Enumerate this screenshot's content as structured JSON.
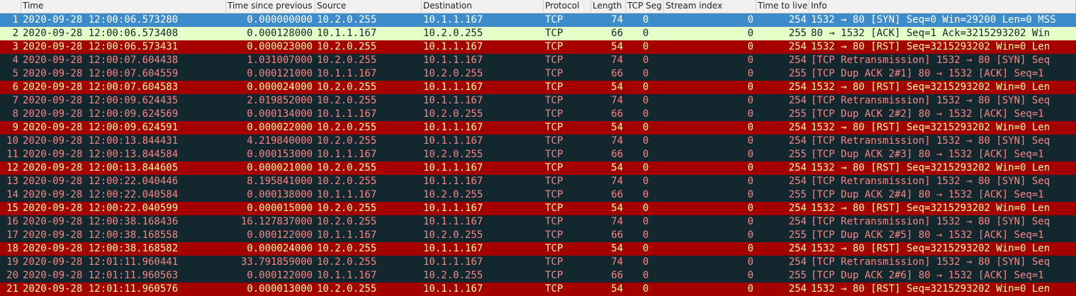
{
  "columns": [
    "",
    "Time",
    "Time since previous",
    "Source",
    "Destination",
    "Protocol",
    "Length",
    "TCP Seg",
    "Stream index",
    "Time to live",
    "Info"
  ],
  "packets": [
    {
      "no": "1",
      "time": "2020-09-28 12:00:06.573280",
      "delta": "0.000000000",
      "src": "10.2.0.255",
      "dst": "10.1.1.167",
      "proto": "TCP",
      "len": "74",
      "seg": "0",
      "stream": "0",
      "ttl": "254",
      "info": "1532 → 80 [SYN] Seq=0 Win=29200 Len=0 MSS",
      "style": "sel"
    },
    {
      "no": "2",
      "time": "2020-09-28 12:00:06.573408",
      "delta": "0.000128000",
      "src": "10.1.1.167",
      "dst": "10.2.0.255",
      "proto": "TCP",
      "len": "66",
      "seg": "0",
      "stream": "0",
      "ttl": "255",
      "info": "80 → 1532 [ACK] Seq=1 Ack=3215293202 Win",
      "style": "ack"
    },
    {
      "no": "3",
      "time": "2020-09-28 12:00:06.573431",
      "delta": "0.000023000",
      "src": "10.2.0.255",
      "dst": "10.1.1.167",
      "proto": "TCP",
      "len": "54",
      "seg": "0",
      "stream": "0",
      "ttl": "254",
      "info": "1532 → 80 [RST] Seq=3215293202 Win=0 Len",
      "style": "rst"
    },
    {
      "no": "4",
      "time": "2020-09-28 12:00:07.604438",
      "delta": "1.031007000",
      "src": "10.2.0.255",
      "dst": "10.1.1.167",
      "proto": "TCP",
      "len": "74",
      "seg": "0",
      "stream": "0",
      "ttl": "254",
      "info": "[TCP Retransmission] 1532 → 80 [SYN] Seq",
      "style": "default"
    },
    {
      "no": "5",
      "time": "2020-09-28 12:00:07.604559",
      "delta": "0.000121000",
      "src": "10.1.1.167",
      "dst": "10.2.0.255",
      "proto": "TCP",
      "len": "66",
      "seg": "0",
      "stream": "0",
      "ttl": "255",
      "info": "[TCP Dup ACK 2#1] 80 → 1532 [ACK] Seq=1",
      "style": "default"
    },
    {
      "no": "6",
      "time": "2020-09-28 12:00:07.604583",
      "delta": "0.000024000",
      "src": "10.2.0.255",
      "dst": "10.1.1.167",
      "proto": "TCP",
      "len": "54",
      "seg": "0",
      "stream": "0",
      "ttl": "254",
      "info": "1532 → 80 [RST] Seq=3215293202 Win=0 Len",
      "style": "rst"
    },
    {
      "no": "7",
      "time": "2020-09-28 12:00:09.624435",
      "delta": "2.019852000",
      "src": "10.2.0.255",
      "dst": "10.1.1.167",
      "proto": "TCP",
      "len": "74",
      "seg": "0",
      "stream": "0",
      "ttl": "254",
      "info": "[TCP Retransmission] 1532 → 80 [SYN] Seq",
      "style": "default"
    },
    {
      "no": "8",
      "time": "2020-09-28 12:00:09.624569",
      "delta": "0.000134000",
      "src": "10.1.1.167",
      "dst": "10.2.0.255",
      "proto": "TCP",
      "len": "66",
      "seg": "0",
      "stream": "0",
      "ttl": "255",
      "info": "[TCP Dup ACK 2#2] 80 → 1532 [ACK] Seq=1",
      "style": "default"
    },
    {
      "no": "9",
      "time": "2020-09-28 12:00:09.624591",
      "delta": "0.000022000",
      "src": "10.2.0.255",
      "dst": "10.1.1.167",
      "proto": "TCP",
      "len": "54",
      "seg": "0",
      "stream": "0",
      "ttl": "254",
      "info": "1532 → 80 [RST] Seq=3215293202 Win=0 Len",
      "style": "rst"
    },
    {
      "no": "10",
      "time": "2020-09-28 12:00:13.844431",
      "delta": "4.219840000",
      "src": "10.2.0.255",
      "dst": "10.1.1.167",
      "proto": "TCP",
      "len": "74",
      "seg": "0",
      "stream": "0",
      "ttl": "254",
      "info": "[TCP Retransmission] 1532 → 80 [SYN] Seq",
      "style": "default"
    },
    {
      "no": "11",
      "time": "2020-09-28 12:00:13.844584",
      "delta": "0.000153000",
      "src": "10.1.1.167",
      "dst": "10.2.0.255",
      "proto": "TCP",
      "len": "66",
      "seg": "0",
      "stream": "0",
      "ttl": "255",
      "info": "[TCP Dup ACK 2#3] 80 → 1532 [ACK] Seq=1",
      "style": "default"
    },
    {
      "no": "12",
      "time": "2020-09-28 12:00:13.844605",
      "delta": "0.000021000",
      "src": "10.2.0.255",
      "dst": "10.1.1.167",
      "proto": "TCP",
      "len": "54",
      "seg": "0",
      "stream": "0",
      "ttl": "254",
      "info": "1532 → 80 [RST] Seq=3215293202 Win=0 Len",
      "style": "rst"
    },
    {
      "no": "13",
      "time": "2020-09-28 12:00:22.040446",
      "delta": "8.195841000",
      "src": "10.2.0.255",
      "dst": "10.1.1.167",
      "proto": "TCP",
      "len": "74",
      "seg": "0",
      "stream": "0",
      "ttl": "254",
      "info": "[TCP Retransmission] 1532 → 80 [SYN] Seq",
      "style": "default"
    },
    {
      "no": "14",
      "time": "2020-09-28 12:00:22.040584",
      "delta": "0.000138000",
      "src": "10.1.1.167",
      "dst": "10.2.0.255",
      "proto": "TCP",
      "len": "66",
      "seg": "0",
      "stream": "0",
      "ttl": "255",
      "info": "[TCP Dup ACK 2#4] 80 → 1532 [ACK] Seq=1",
      "style": "default"
    },
    {
      "no": "15",
      "time": "2020-09-28 12:00:22.040599",
      "delta": "0.000015000",
      "src": "10.2.0.255",
      "dst": "10.1.1.167",
      "proto": "TCP",
      "len": "54",
      "seg": "0",
      "stream": "0",
      "ttl": "254",
      "info": "1532 → 80 [RST] Seq=3215293202 Win=0 Len",
      "style": "rst"
    },
    {
      "no": "16",
      "time": "2020-09-28 12:00:38.168436",
      "delta": "16.127837000",
      "src": "10.2.0.255",
      "dst": "10.1.1.167",
      "proto": "TCP",
      "len": "74",
      "seg": "0",
      "stream": "0",
      "ttl": "254",
      "info": "[TCP Retransmission] 1532 → 80 [SYN] Seq",
      "style": "default"
    },
    {
      "no": "17",
      "time": "2020-09-28 12:00:38.168558",
      "delta": "0.000122000",
      "src": "10.1.1.167",
      "dst": "10.2.0.255",
      "proto": "TCP",
      "len": "66",
      "seg": "0",
      "stream": "0",
      "ttl": "255",
      "info": "[TCP Dup ACK 2#5] 80 → 1532 [ACK] Seq=1",
      "style": "default"
    },
    {
      "no": "18",
      "time": "2020-09-28 12:00:38.168582",
      "delta": "0.000024000",
      "src": "10.2.0.255",
      "dst": "10.1.1.167",
      "proto": "TCP",
      "len": "54",
      "seg": "0",
      "stream": "0",
      "ttl": "254",
      "info": "1532 → 80 [RST] Seq=3215293202 Win=0 Len",
      "style": "rst"
    },
    {
      "no": "19",
      "time": "2020-09-28 12:01:11.960441",
      "delta": "33.791859000",
      "src": "10.2.0.255",
      "dst": "10.1.1.167",
      "proto": "TCP",
      "len": "74",
      "seg": "0",
      "stream": "0",
      "ttl": "254",
      "info": "[TCP Retransmission] 1532 → 80 [SYN] Seq",
      "style": "default"
    },
    {
      "no": "20",
      "time": "2020-09-28 12:01:11.960563",
      "delta": "0.000122000",
      "src": "10.1.1.167",
      "dst": "10.2.0.255",
      "proto": "TCP",
      "len": "66",
      "seg": "0",
      "stream": "0",
      "ttl": "255",
      "info": "[TCP Dup ACK 2#6] 80 → 1532 [ACK] Seq=1",
      "style": "default"
    },
    {
      "no": "21",
      "time": "2020-09-28 12:01:11.960576",
      "delta": "0.000013000",
      "src": "10.2.0.255",
      "dst": "10.1.1.167",
      "proto": "TCP",
      "len": "54",
      "seg": "0",
      "stream": "0",
      "ttl": "254",
      "info": "1532 → 80 [RST] Seq=3215293202 Win=0 Len",
      "style": "rst"
    }
  ]
}
